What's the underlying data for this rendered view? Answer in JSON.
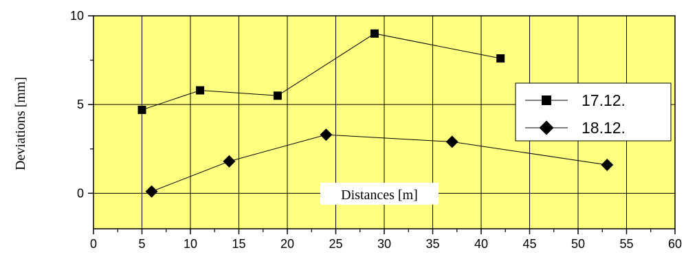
{
  "chart_data": {
    "type": "line",
    "xlabel": "Distances [m]",
    "ylabel": "Deviations [mm]",
    "xlim": [
      0,
      60
    ],
    "ylim": [
      -2,
      10
    ],
    "x_ticks": [
      0,
      5,
      10,
      15,
      20,
      25,
      30,
      35,
      40,
      45,
      50,
      55,
      60
    ],
    "y_ticks": [
      0,
      5,
      10
    ],
    "x_tick_labels": [
      "0",
      "5",
      "10",
      "15",
      "20",
      "25",
      "30",
      "35",
      "40",
      "45",
      "50",
      "55",
      "60"
    ],
    "y_tick_labels": [
      "0",
      "5",
      "10"
    ],
    "grid": true,
    "legend_position": "right",
    "colors": {
      "plot_background": "#FFFF80",
      "grid": "#000000",
      "line": "#000000",
      "page_background": "#FFFFFF"
    },
    "series": [
      {
        "name": "17.12.",
        "marker": "square",
        "x": [
          5,
          11,
          19,
          29,
          42
        ],
        "y": [
          4.7,
          5.8,
          5.5,
          9.0,
          7.6
        ]
      },
      {
        "name": "18.12.",
        "marker": "diamond",
        "x": [
          6,
          14,
          24,
          37,
          53
        ],
        "y": [
          0.1,
          1.8,
          3.3,
          2.9,
          1.6
        ]
      }
    ]
  }
}
